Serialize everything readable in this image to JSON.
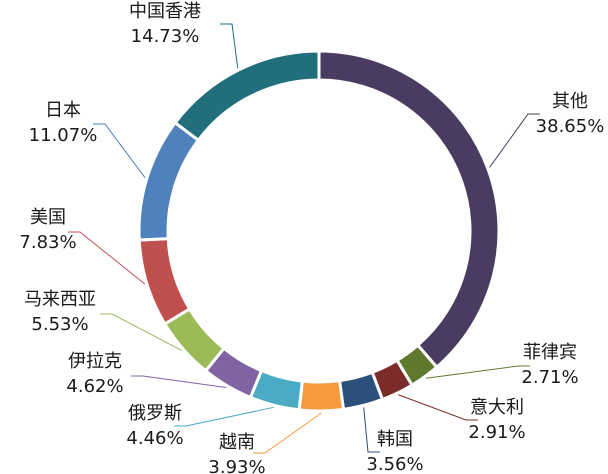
{
  "chart_data": {
    "type": "pie",
    "categories": [
      "其他",
      "菲律宾",
      "意大利",
      "韩国",
      "越南",
      "俄罗斯",
      "伊拉克",
      "马来西亚",
      "美国",
      "日本",
      "中国香港"
    ],
    "values": [
      38.65,
      2.71,
      2.91,
      3.56,
      3.93,
      4.46,
      4.62,
      5.53,
      7.83,
      11.07,
      14.73
    ],
    "value_labels": [
      "38.65%",
      "2.71%",
      "2.91%",
      "3.56%",
      "3.93%",
      "4.46%",
      "4.62%",
      "5.53%",
      "7.83%",
      "11.07%",
      "14.73%"
    ],
    "colors": [
      "#4a3b60",
      "#5f7a2e",
      "#7b2c2a",
      "#2d4f7c",
      "#f79a3e",
      "#4babc5",
      "#8064a2",
      "#9bbb59",
      "#c0504d",
      "#4f81bd",
      "#216e7c"
    ]
  }
}
